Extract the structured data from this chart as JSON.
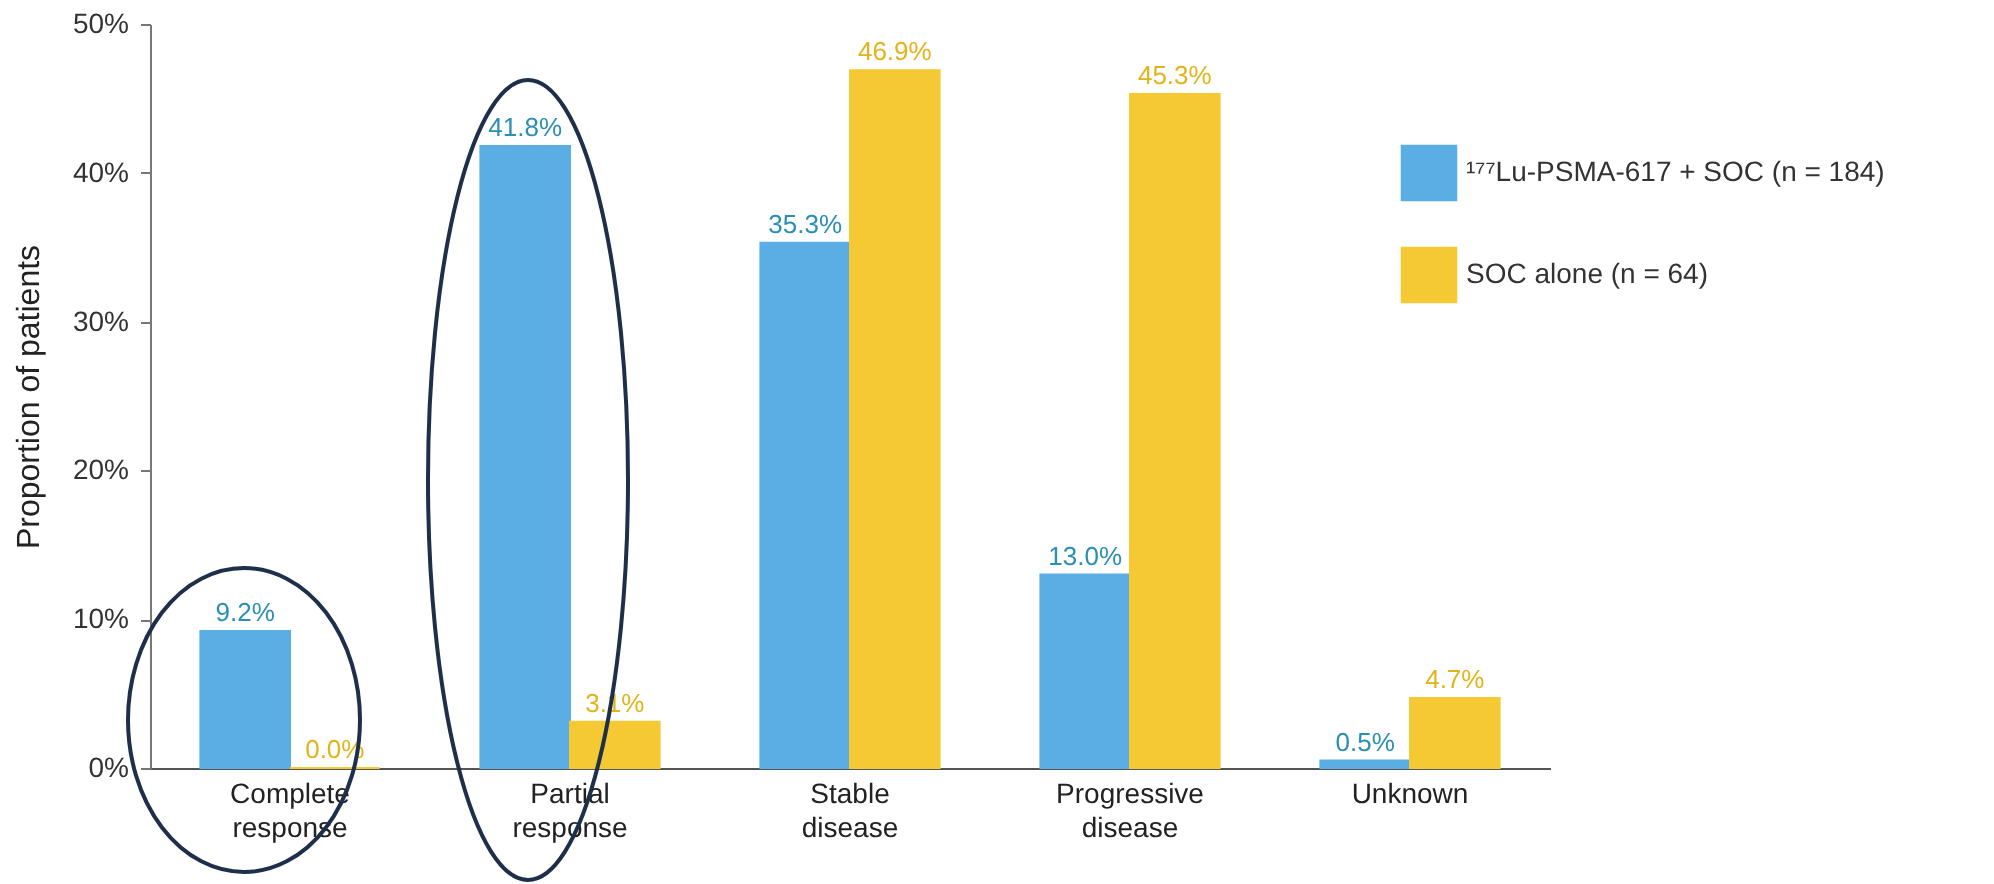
{
  "chart_data": {
    "type": "bar",
    "ylabel": "Proportion of patients",
    "categories": [
      "Complete response",
      "Partial response",
      "Stable disease",
      "Progressive disease",
      "Unknown"
    ],
    "series": [
      {
        "name": "¹⁷⁷Lu-PSMA-617 + SOC (n = 184)",
        "color": "#5aaee3",
        "values": [
          9.2,
          41.8,
          35.3,
          13.0,
          0.5
        ],
        "value_labels": [
          "9.2%",
          "41.8%",
          "35.3%",
          "13.0%",
          "0.5%"
        ]
      },
      {
        "name": "SOC alone (n = 64)",
        "color": "#f5c933",
        "values": [
          0.0,
          3.1,
          46.9,
          45.3,
          4.7
        ],
        "value_labels": [
          "0.0%",
          "3.1%",
          "46.9%",
          "45.3%",
          "4.7%"
        ]
      }
    ],
    "ylim": [
      0,
      50
    ],
    "yticks": [
      {
        "value": 0,
        "label": "0%"
      },
      {
        "value": 10,
        "label": "10%"
      },
      {
        "value": 20,
        "label": "20%"
      },
      {
        "value": 30,
        "label": "30%"
      },
      {
        "value": 40,
        "label": "40%"
      },
      {
        "value": 50,
        "label": "50%"
      }
    ],
    "legend": "right",
    "grid": false
  }
}
